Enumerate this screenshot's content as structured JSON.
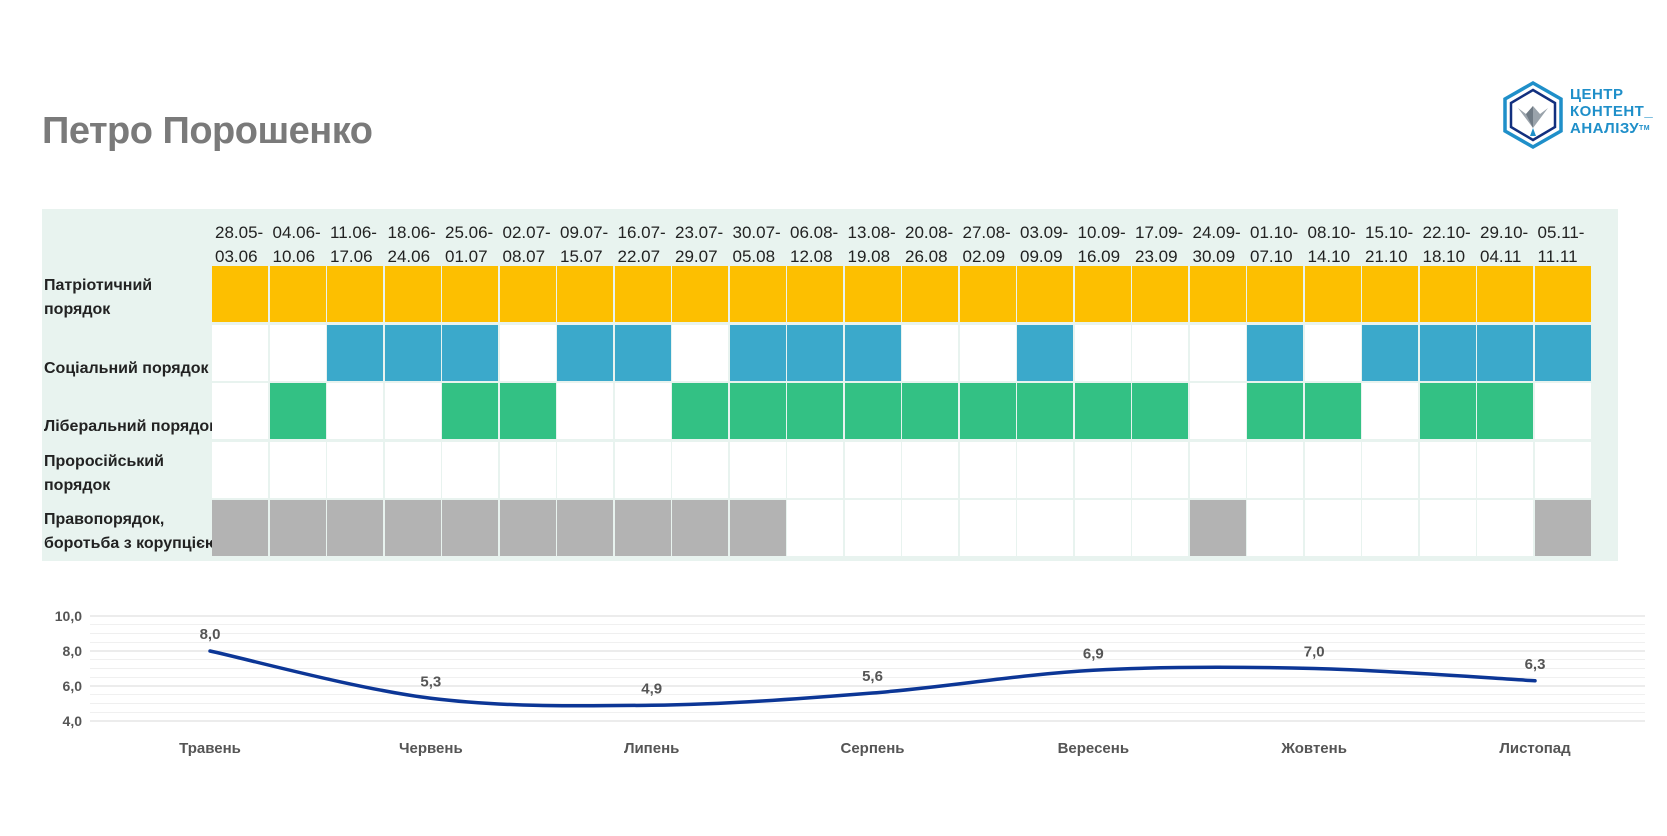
{
  "page": {
    "title": "Петро Порошенко"
  },
  "logo": {
    "line1": "ЦЕНТР",
    "line2": "КОНТЕНТ_",
    "line3": "АНАЛІЗУ",
    "tm": "TM"
  },
  "colors": {
    "patriotic": "#fdbf00",
    "social": "#3ba9cb",
    "liberal": "#33c184",
    "prorussian": "#ffffff",
    "laworder": "#b3b3b3",
    "empty": "#ffffff",
    "line": "#0c3696",
    "grid": "#e0e0e0",
    "header_bg": "#e8f3ef"
  },
  "chart_data": [
    {
      "type": "table",
      "columns": [
        [
          "28.05-",
          "03.06"
        ],
        [
          "04.06-",
          "10.06"
        ],
        [
          "11.06-",
          "17.06"
        ],
        [
          "18.06-",
          "24.06"
        ],
        [
          "25.06-",
          "01.07"
        ],
        [
          "02.07-",
          "08.07"
        ],
        [
          "09.07-",
          "15.07"
        ],
        [
          "16.07-",
          "22.07"
        ],
        [
          "23.07-",
          "29.07"
        ],
        [
          "30.07-",
          "05.08"
        ],
        [
          "06.08-",
          "12.08"
        ],
        [
          "13.08-",
          "19.08"
        ],
        [
          "20.08-",
          "26.08"
        ],
        [
          "27.08-",
          "02.09"
        ],
        [
          "03.09-",
          "09.09"
        ],
        [
          "10.09-",
          "16.09"
        ],
        [
          "17.09-",
          "23.09"
        ],
        [
          "24.09-",
          "30.09"
        ],
        [
          "01.10-",
          "07.10"
        ],
        [
          "08.10-",
          "14.10"
        ],
        [
          "15.10-",
          "21.10"
        ],
        [
          "22.10-",
          "18.10"
        ],
        [
          "29.10-",
          "04.11"
        ],
        [
          "05.11-",
          "11.11"
        ]
      ],
      "rows": [
        {
          "key": "patriotic",
          "label_lines": [
            "Патріотичний",
            "порядок"
          ],
          "values": [
            1,
            1,
            1,
            1,
            1,
            1,
            1,
            1,
            1,
            1,
            1,
            1,
            1,
            1,
            1,
            1,
            1,
            1,
            1,
            1,
            1,
            1,
            1,
            1
          ]
        },
        {
          "key": "social",
          "label_lines": [
            "",
            "Соціальний порядок"
          ],
          "values": [
            0,
            0,
            1,
            1,
            1,
            0,
            1,
            1,
            0,
            1,
            1,
            1,
            0,
            0,
            1,
            0,
            0,
            0,
            1,
            0,
            1,
            1,
            1,
            1
          ]
        },
        {
          "key": "liberal",
          "label_lines": [
            "",
            "Ліберальний порядок"
          ],
          "values": [
            0,
            1,
            0,
            0,
            1,
            1,
            0,
            0,
            1,
            1,
            1,
            1,
            1,
            1,
            1,
            1,
            1,
            0,
            1,
            1,
            0,
            1,
            1,
            0
          ]
        },
        {
          "key": "prorussian",
          "label_lines": [
            "Проросійський",
            "порядок"
          ],
          "values": [
            0,
            0,
            0,
            0,
            0,
            0,
            0,
            0,
            0,
            0,
            0,
            0,
            0,
            0,
            0,
            0,
            0,
            0,
            0,
            0,
            0,
            0,
            0,
            0
          ]
        },
        {
          "key": "laworder",
          "label_lines": [
            "Правопорядок,",
            "боротьба з корупцією"
          ],
          "values": [
            1,
            1,
            1,
            1,
            1,
            1,
            1,
            1,
            1,
            1,
            0,
            0,
            0,
            0,
            0,
            0,
            0,
            1,
            0,
            0,
            0,
            0,
            0,
            1
          ]
        }
      ]
    },
    {
      "type": "line",
      "categories": [
        "Травень",
        "Червень",
        "Липень",
        "Серпень",
        "Вересень",
        "Жовтень",
        "Листопад"
      ],
      "values": [
        8.0,
        5.3,
        4.9,
        5.6,
        6.9,
        7.0,
        6.3
      ],
      "value_labels": [
        "8,0",
        "5,3",
        "4,9",
        "5,6",
        "6,9",
        "7,0",
        "6,3"
      ],
      "yticks": [
        "10,0",
        "8,0",
        "6,0",
        "4,0"
      ],
      "ytick_values": [
        10,
        8,
        6,
        4
      ],
      "ylim": [
        4,
        10
      ],
      "grid": true
    }
  ]
}
